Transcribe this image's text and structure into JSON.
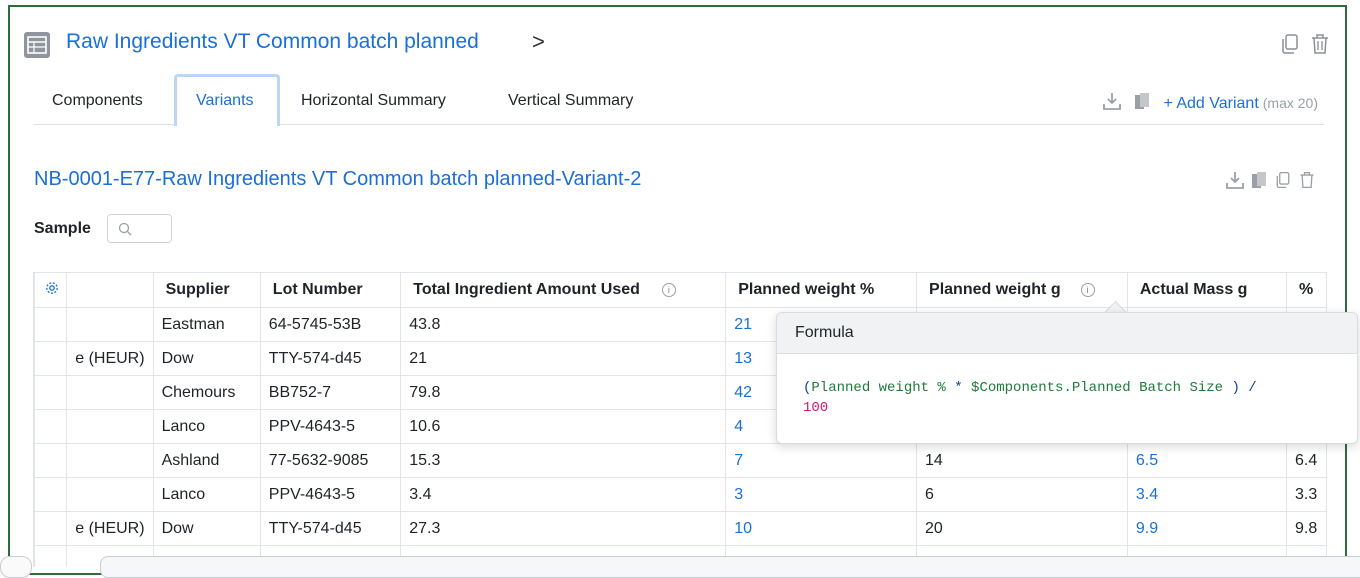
{
  "header": {
    "title": "Raw Ingredients VT Common batch planned",
    "chevron": ">"
  },
  "tabs": [
    {
      "label": "Components"
    },
    {
      "label": "Variants"
    },
    {
      "label": "Horizontal Summary"
    },
    {
      "label": "Vertical Summary"
    }
  ],
  "active_tab": "Variants",
  "tab_actions": {
    "add_variant": "+ Add Variant",
    "max_note": "(max 20)"
  },
  "variant": {
    "title": "NB-0001-E77-Raw Ingredients VT Common batch planned-Variant-2"
  },
  "sample": {
    "label": "Sample"
  },
  "table": {
    "columns": [
      "",
      "Supplier",
      "Lot Number",
      "Total Ingredient Amount Used",
      "Planned weight %",
      "Planned weight g",
      "Actual Mass g",
      "%"
    ],
    "rows": [
      [
        "",
        "Eastman",
        "64-5745-53B",
        "43.8",
        "21",
        "",
        "",
        ""
      ],
      [
        "е (HEUR)",
        "Dow",
        "TTY-574-d45",
        "21",
        "13",
        "",
        "",
        ""
      ],
      [
        "",
        "Chemours",
        "BB752-7",
        "79.8",
        "42",
        "",
        "",
        ""
      ],
      [
        "",
        "Lanco",
        "PPV-4643-5",
        "10.6",
        "4",
        "",
        "",
        ""
      ],
      [
        "",
        "Ashland",
        "77-5632-9085",
        "15.3",
        "7",
        "14",
        "6.5",
        "6.4"
      ],
      [
        "",
        "Lanco",
        "PPV-4643-5",
        "3.4",
        "3",
        "6",
        "3.4",
        "3.3"
      ],
      [
        "е (HEUR)",
        "Dow",
        "TTY-574-d45",
        "27.3",
        "10",
        "20",
        "9.9",
        "9.8"
      ]
    ]
  },
  "popover": {
    "title": "Formula",
    "line1_open": "(",
    "line1_var": "Planned weight %",
    "line1_op": " * ",
    "line1_ref": "$Components.Planned Batch Size",
    "line1_close": " ) /",
    "line2": "100"
  },
  "colors": {
    "accent": "#1a6fd8",
    "frame": "#2f6b3a"
  }
}
